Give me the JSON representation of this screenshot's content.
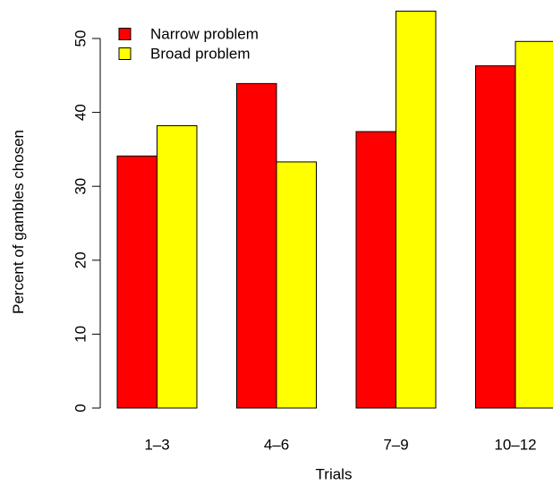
{
  "chart_data": {
    "type": "bar",
    "title": "",
    "xlabel": "Trials",
    "ylabel": "Percent of gambles chosen",
    "categories": [
      "1–3",
      "4–6",
      "7–9",
      "10–12"
    ],
    "series": [
      {
        "name": "Narrow problem",
        "color": "#ff0000",
        "values": [
          34.1,
          43.9,
          37.4,
          46.3
        ]
      },
      {
        "name": "Broad problem",
        "color": "#ffff00",
        "values": [
          38.2,
          33.3,
          53.7,
          49.6
        ]
      }
    ],
    "ylim": [
      0,
      53.7
    ],
    "yticks": [
      0,
      10,
      20,
      30,
      40,
      50
    ],
    "legend_position": "top-left",
    "grid": false
  }
}
